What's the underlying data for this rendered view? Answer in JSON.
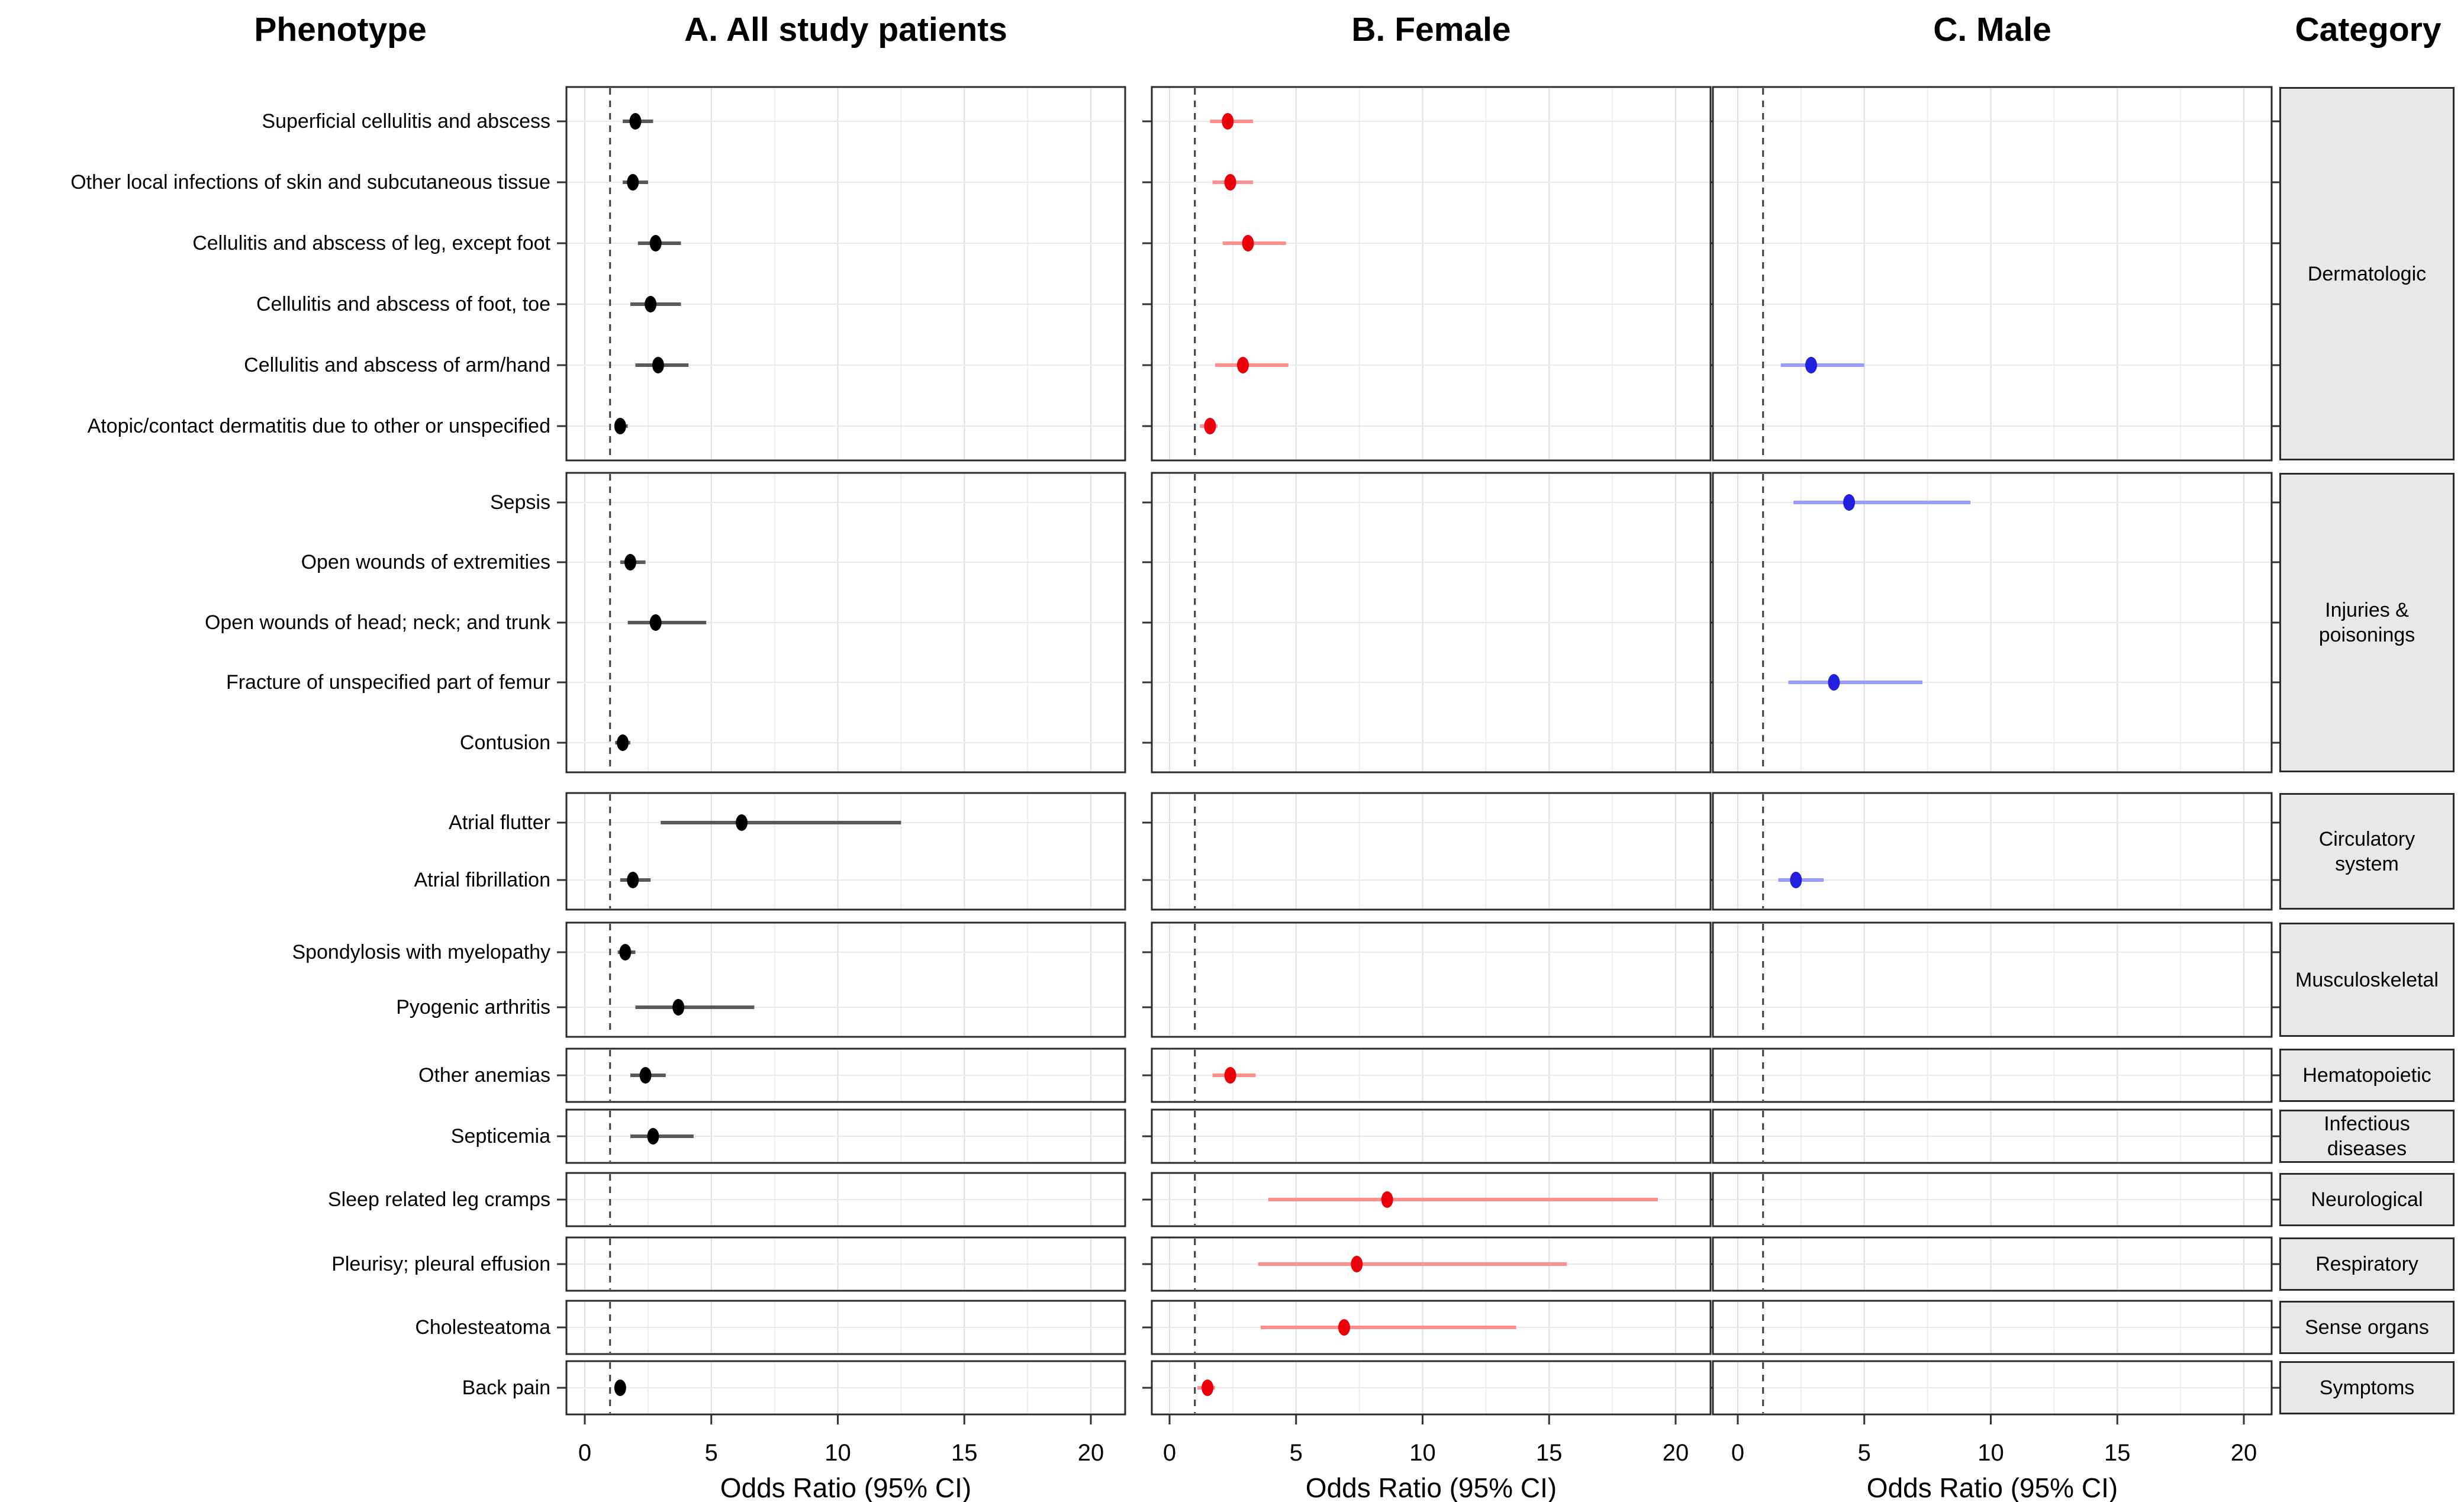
{
  "figure": {
    "headers": {
      "phenotype": "Phenotype",
      "category": "Category"
    }
  },
  "style": {
    "background": "#ffffff",
    "panel_border": "#2b2b2b",
    "gridline_major": "#dedede",
    "gridline_minor": "#ededed",
    "row_gridline": "#eaeaea",
    "reference_line": "#3c3c3c",
    "tick_color": "#333333",
    "category_fill": "#e8e8e8",
    "text_color": "#000000"
  },
  "chart_data": {
    "type": "scatter",
    "variant": "forest_plot_odds_ratios",
    "x_axis": {
      "label": "Odds Ratio (95% CI)",
      "ticks": [
        0,
        5,
        10,
        15,
        20
      ],
      "minor_gridline_step": 2.5,
      "range": [
        -0.8,
        21.4
      ],
      "reference_line": 1,
      "grid": true
    },
    "y_axis_header": "Phenotype",
    "facet_header": "Category",
    "panels": [
      {
        "key": "all",
        "title": "A. All study patients",
        "point_color": "#000000",
        "ci_color": "#595959"
      },
      {
        "key": "female",
        "title": "B. Female",
        "point_color": "#e8000b",
        "ci_color": "#ff8f8f"
      },
      {
        "key": "male",
        "title": "C. Male",
        "point_color": "#2121dd",
        "ci_color": "#9c9cff"
      }
    ],
    "value_format": "[odds_ratio, ci_low, ci_high]",
    "groups": [
      {
        "category": "Dermatologic",
        "rows": [
          {
            "phenotype": "Superficial cellulitis and abscess",
            "all": [
              2.0,
              1.5,
              2.7
            ],
            "female": [
              2.3,
              1.6,
              3.3
            ],
            "male": null
          },
          {
            "phenotype": "Other local infections of skin and subcutaneous tissue",
            "all": [
              1.9,
              1.5,
              2.5
            ],
            "female": [
              2.4,
              1.7,
              3.3
            ],
            "male": null
          },
          {
            "phenotype": "Cellulitis and abscess of leg, except foot",
            "all": [
              2.8,
              2.1,
              3.8
            ],
            "female": [
              3.1,
              2.1,
              4.6
            ],
            "male": null
          },
          {
            "phenotype": "Cellulitis and abscess of foot, toe",
            "all": [
              2.6,
              1.8,
              3.8
            ],
            "female": null,
            "male": null
          },
          {
            "phenotype": "Cellulitis and abscess of arm/hand",
            "all": [
              2.9,
              2.0,
              4.1
            ],
            "female": [
              2.9,
              1.8,
              4.7
            ],
            "male": [
              2.9,
              1.7,
              5.0
            ]
          },
          {
            "phenotype": "Atopic/contact dermatitis due to other or unspecified",
            "all": [
              1.4,
              1.2,
              1.7
            ],
            "female": [
              1.6,
              1.2,
              1.9
            ],
            "male": null
          }
        ]
      },
      {
        "category": "Injuries &\npoisonings",
        "rows": [
          {
            "phenotype": "Sepsis",
            "all": null,
            "female": null,
            "male": [
              4.4,
              2.2,
              9.2
            ]
          },
          {
            "phenotype": "Open wounds of extremities",
            "all": [
              1.8,
              1.4,
              2.4
            ],
            "female": null,
            "male": null
          },
          {
            "phenotype": "Open wounds of head; neck; and trunk",
            "all": [
              2.8,
              1.7,
              4.8
            ],
            "female": null,
            "male": null
          },
          {
            "phenotype": "Fracture of unspecified part of femur",
            "all": null,
            "female": null,
            "male": [
              3.8,
              2.0,
              7.3
            ]
          },
          {
            "phenotype": "Contusion",
            "all": [
              1.5,
              1.2,
              1.8
            ],
            "female": null,
            "male": null
          }
        ]
      },
      {
        "category": "Circulatory\nsystem",
        "rows": [
          {
            "phenotype": "Atrial flutter",
            "all": [
              6.2,
              3.0,
              12.5
            ],
            "female": null,
            "male": null
          },
          {
            "phenotype": "Atrial fibrillation",
            "all": [
              1.9,
              1.4,
              2.6
            ],
            "female": null,
            "male": [
              2.3,
              1.6,
              3.4
            ]
          }
        ]
      },
      {
        "category": "Musculoskeletal",
        "rows": [
          {
            "phenotype": "Spondylosis with myelopathy",
            "all": [
              1.6,
              1.3,
              2.0
            ],
            "female": null,
            "male": null
          },
          {
            "phenotype": "Pyogenic arthritis",
            "all": [
              3.7,
              2.0,
              6.7
            ],
            "female": null,
            "male": null
          }
        ]
      },
      {
        "category": "Hematopoietic",
        "rows": [
          {
            "phenotype": "Other anemias",
            "all": [
              2.4,
              1.8,
              3.2
            ],
            "female": [
              2.4,
              1.7,
              3.4
            ],
            "male": null
          }
        ]
      },
      {
        "category": "Infectious\ndiseases",
        "rows": [
          {
            "phenotype": "Septicemia",
            "all": [
              2.7,
              1.8,
              4.3
            ],
            "female": null,
            "male": null
          }
        ]
      },
      {
        "category": "Neurological",
        "rows": [
          {
            "phenotype": "Sleep related leg cramps",
            "all": null,
            "female": [
              8.6,
              3.9,
              19.3
            ],
            "male": null
          }
        ]
      },
      {
        "category": "Respiratory",
        "rows": [
          {
            "phenotype": "Pleurisy; pleural effusion",
            "all": null,
            "female": [
              7.4,
              3.5,
              15.7
            ],
            "male": null
          }
        ]
      },
      {
        "category": "Sense organs",
        "rows": [
          {
            "phenotype": "Cholesteatoma",
            "all": null,
            "female": [
              6.9,
              3.6,
              13.7
            ],
            "male": null
          }
        ]
      },
      {
        "category": "Symptoms",
        "rows": [
          {
            "phenotype": "Back pain",
            "all": [
              1.4,
              1.3,
              1.6
            ],
            "female": [
              1.5,
              1.1,
              1.8
            ],
            "male": null
          }
        ]
      }
    ]
  }
}
